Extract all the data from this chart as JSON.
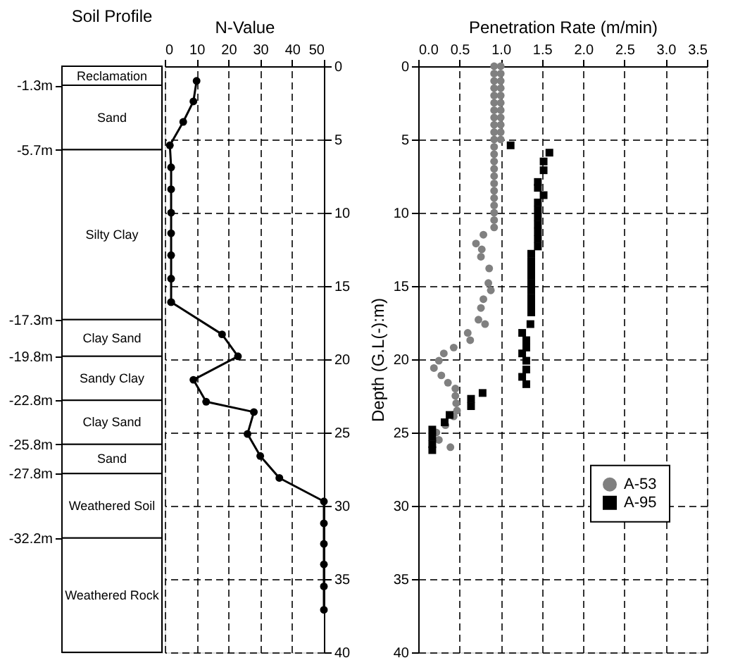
{
  "chart_data": [
    {
      "type": "bar",
      "stacked": true,
      "title": "Soil Profile",
      "categories": [
        null
      ],
      "tick_labels": "y",
      "ylim": [
        -40,
        0
      ],
      "yticks": [
        {
          "value": -1.3,
          "label": "-1.3m"
        },
        {
          "value": -5.7,
          "label": "-5.7m"
        },
        {
          "value": -17.3,
          "label": "-17.3m"
        },
        {
          "value": -19.8,
          "label": "-19.8m"
        },
        {
          "value": -22.8,
          "label": "-22.8m"
        },
        {
          "value": -25.8,
          "label": "-25.8m"
        },
        {
          "value": -27.8,
          "label": "-27.8m"
        },
        {
          "value": -32.2,
          "label": "-32.2m"
        }
      ],
      "series": [
        {
          "name": "Reclamation",
          "color": "#ffffff",
          "values": [
            -1.3
          ]
        },
        {
          "name": "Sand",
          "color": "#ffffff",
          "values": [
            -4.4
          ]
        },
        {
          "name": "Silty Clay",
          "color": "#ffffff",
          "values": [
            -11.6
          ]
        },
        {
          "name": "Clay Sand",
          "color": "#ffffff",
          "values": [
            -2.5
          ]
        },
        {
          "name": "Sandy Clay",
          "color": "#ffffff",
          "values": [
            -3.0
          ]
        },
        {
          "name": "Clay Sand",
          "color": "#ffffff",
          "values": [
            -3.0
          ]
        },
        {
          "name": "Sand",
          "color": "#ffffff",
          "values": [
            -2.0
          ]
        },
        {
          "name": "Weathered Soil",
          "color": "#ffffff",
          "values": [
            -4.4
          ]
        },
        {
          "name": "Weathered Rock",
          "color": "#ffffff",
          "values": [
            -7.8
          ]
        }
      ]
    },
    {
      "type": "line",
      "xlabel": "N-Value",
      "marker": "circle",
      "line_style": "solid",
      "grid": true,
      "xlim": [
        0,
        50
      ],
      "xticks": [
        0,
        10,
        20,
        30,
        40,
        50
      ],
      "ylim": [
        40,
        0
      ],
      "yticks": [
        0,
        5,
        10,
        15,
        20,
        25,
        30,
        35,
        40
      ],
      "series": [
        {
          "color": "#000000",
          "x": [
            10,
            9,
            5.8,
            1.6,
            2,
            2,
            2,
            2,
            2,
            2,
            2,
            2,
            18,
            23,
            9,
            13,
            28,
            26,
            30,
            36,
            50,
            50,
            50,
            50,
            50,
            50
          ],
          "values": [
            1,
            2.4,
            3.8,
            5.4,
            6.9,
            8.4,
            10,
            11.4,
            12.9,
            14.5,
            16.1,
            16.1,
            18.3,
            19.8,
            21.4,
            22.9,
            23.6,
            25.1,
            26.6,
            28.1,
            29.7,
            31.2,
            32.6,
            34,
            35.5,
            37.1
          ]
        }
      ]
    },
    {
      "type": "scatter",
      "xlabel": "Penetration Rate (m/min)",
      "ylabel": "Depth (G.L(-):m)",
      "grid": true,
      "legend": "right",
      "xlim": [
        0,
        3.5
      ],
      "xticks": [
        {
          "value": 0,
          "label": "0.0"
        },
        {
          "value": 0.5,
          "label": "0.5"
        },
        {
          "value": 1,
          "label": "1.0"
        },
        {
          "value": 1.5,
          "label": "1.5"
        },
        {
          "value": 2,
          "label": "2.0"
        },
        {
          "value": 2.5,
          "label": "2.5"
        },
        {
          "value": 3,
          "label": "3.0"
        },
        {
          "value": 3.5,
          "label": "3.5"
        }
      ],
      "ylim": [
        40,
        0
      ],
      "yticks": [
        0,
        5,
        10,
        15,
        20,
        25,
        30,
        35,
        40
      ],
      "series": [
        {
          "name": "A-53",
          "color": "#808080",
          "marker": "circle",
          "x": [
            0.92,
            1.0,
            0.92,
            1.0,
            0.92,
            1.0,
            0.92,
            1.0,
            0.92,
            1.0,
            0.92,
            1.0,
            0.92,
            1.0,
            0.92,
            1.0,
            0.92,
            1.0,
            0.92,
            1.0,
            0.92,
            1.0,
            0.92,
            0.92,
            0.92,
            0.92,
            0.92,
            0.92,
            0.92,
            0.92,
            0.92,
            0.92,
            0.92,
            0.92,
            0.79,
            0.7,
            0.77,
            0.76,
            0.86,
            0.85,
            0.88,
            0.79,
            0.76,
            0.73,
            0.81,
            0.6,
            0.63,
            0.43,
            0.31,
            0.25,
            0.19,
            0.28,
            0.36,
            0.45,
            0.45,
            0.46,
            0.47,
            0.43,
            0.33,
            0.22,
            0.25,
            0.39
          ],
          "values": [
            0,
            0,
            0.5,
            0.5,
            1,
            1,
            1.5,
            1.5,
            2,
            2,
            2.5,
            2.5,
            3,
            3,
            3.5,
            3.5,
            4,
            4,
            4.5,
            4.5,
            5,
            5,
            5.5,
            6,
            6.5,
            7,
            7.5,
            8,
            8.5,
            9,
            9.5,
            10,
            10.5,
            11,
            11.5,
            12.1,
            12.5,
            13,
            13.8,
            14.8,
            15.3,
            15.9,
            16.5,
            17.3,
            17.6,
            18.2,
            18.7,
            19.2,
            19.6,
            20.1,
            20.6,
            21.1,
            21.6,
            22,
            22.5,
            23,
            23.5,
            23.9,
            24.5,
            25,
            25.5,
            26
          ]
        },
        {
          "name": "A-95",
          "color": "#000000",
          "marker": "square",
          "x": [
            1.12,
            1.59,
            1.52,
            1.52,
            1.45,
            1.45,
            1.52,
            1.45,
            1.45,
            1.45,
            1.45,
            1.45,
            1.45,
            1.45,
            1.37,
            1.37,
            1.37,
            1.37,
            1.37,
            1.37,
            1.37,
            1.37,
            1.37,
            1.36,
            1.26,
            1.31,
            1.31,
            1.26,
            1.31,
            1.31,
            1.26,
            1.31,
            0.78,
            0.64,
            0.64,
            0.38,
            0.32,
            0.17,
            0.17,
            0.17,
            0.17
          ],
          "values": [
            5.4,
            5.9,
            6.5,
            7.1,
            7.9,
            8.3,
            8.8,
            9.3,
            9.8,
            10.3,
            10.8,
            11.3,
            11.8,
            12.3,
            12.8,
            13.3,
            13.8,
            14.3,
            14.8,
            15.3,
            15.8,
            16.3,
            16.8,
            17.6,
            18.2,
            18.7,
            19.2,
            19.6,
            20.1,
            20.7,
            21.2,
            21.7,
            22.3,
            22.7,
            23.2,
            23.8,
            24.3,
            24.8,
            25.3,
            25.8,
            26.2
          ]
        }
      ]
    }
  ]
}
